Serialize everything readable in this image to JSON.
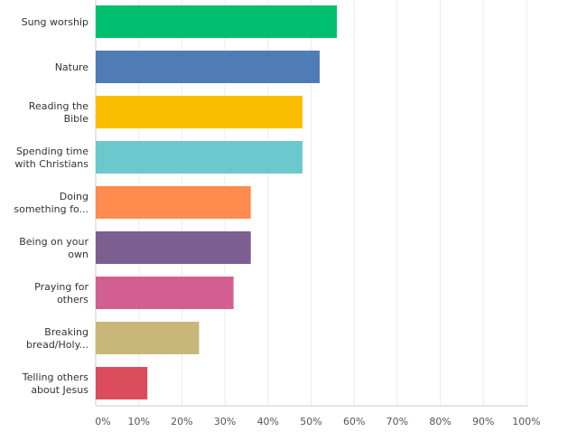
{
  "chart_data": {
    "type": "bar",
    "orientation": "horizontal",
    "categories": [
      [
        "Sung worship"
      ],
      [
        "Nature"
      ],
      [
        "Reading the",
        "Bible"
      ],
      [
        "Spending time",
        "with Christians"
      ],
      [
        "Doing",
        "something fo..."
      ],
      [
        "Being on your",
        "own"
      ],
      [
        "Praying for",
        "others"
      ],
      [
        "Breaking",
        "bread/Holy..."
      ],
      [
        "Telling others",
        "about Jesus"
      ]
    ],
    "values": [
      56,
      52,
      48,
      48,
      36,
      36,
      32,
      24,
      12
    ],
    "colors": [
      "#00bf6f",
      "#507cb6",
      "#f9be00",
      "#6bc8cd",
      "#ff8b4f",
      "#7d5e90",
      "#d25f90",
      "#c9b77a",
      "#db4d5c"
    ],
    "xlim": [
      0,
      100
    ],
    "ticks": [
      "0%",
      "10%",
      "20%",
      "30%",
      "40%",
      "50%",
      "60%",
      "70%",
      "80%",
      "90%",
      "100%"
    ],
    "grid": true,
    "title": "",
    "xlabel": "",
    "ylabel": ""
  }
}
